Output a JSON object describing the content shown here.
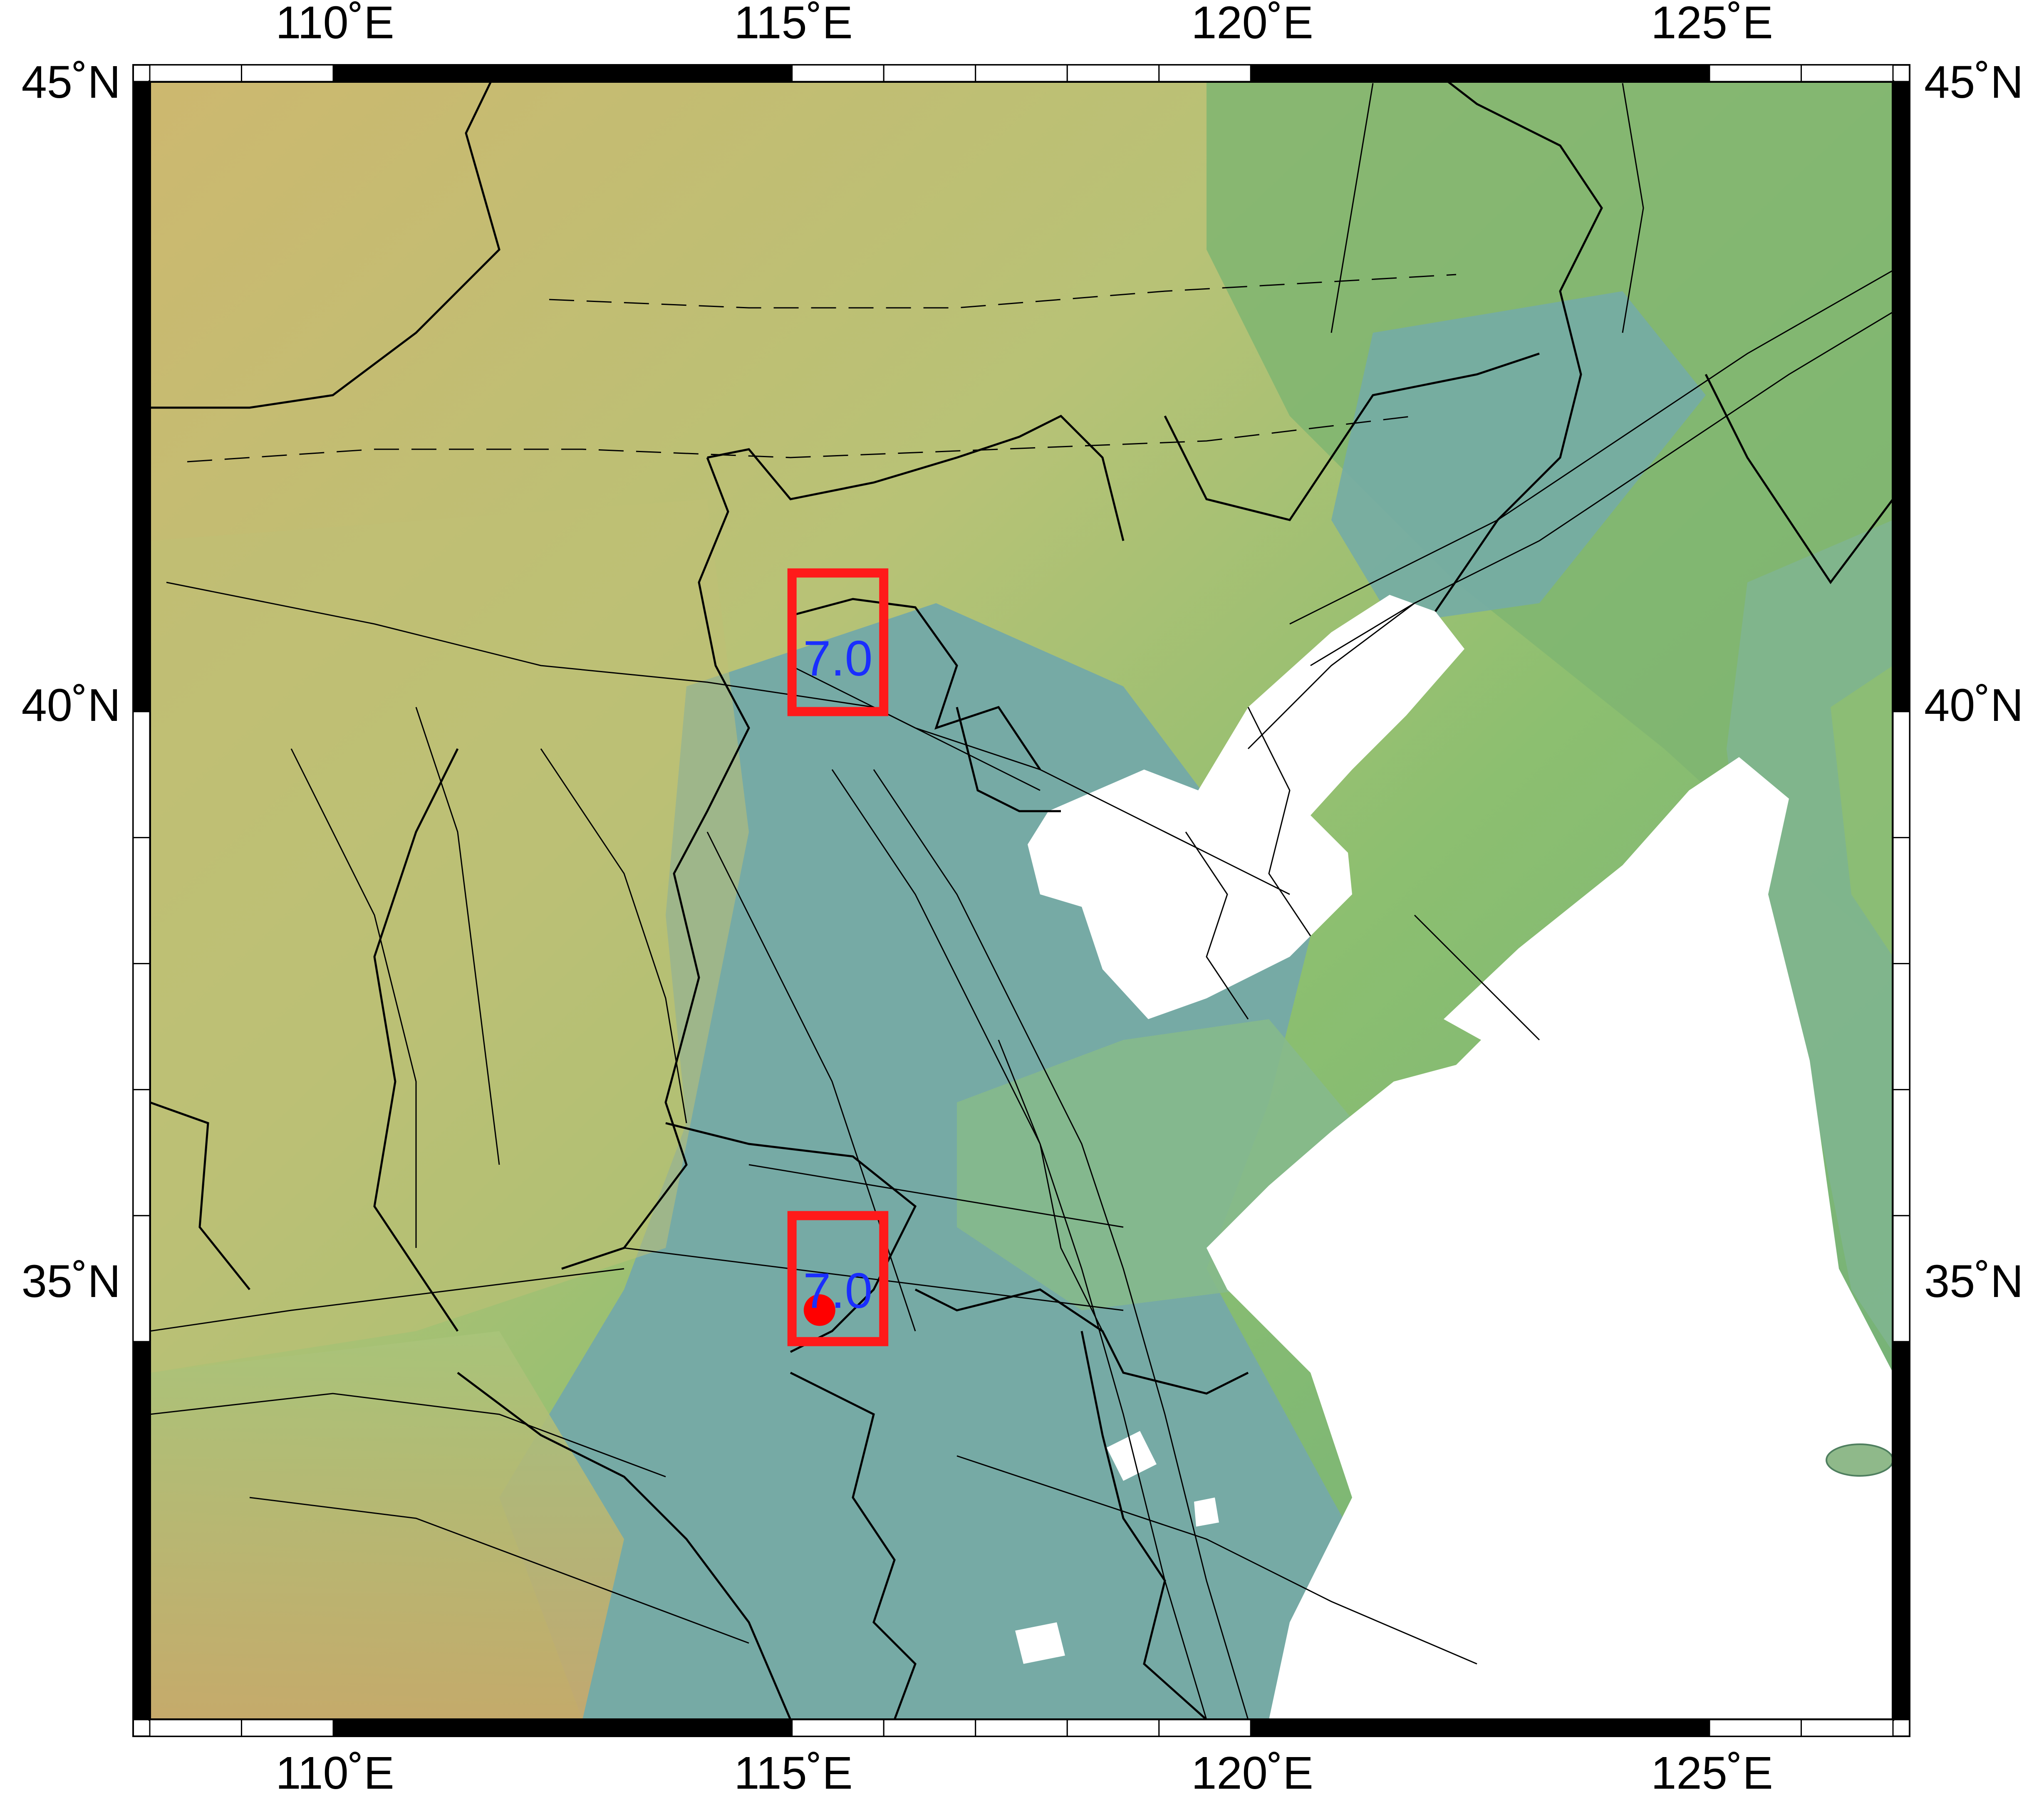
{
  "map": {
    "lon_range": [
      108,
      127
    ],
    "lat_range": [
      32,
      45
    ],
    "frame": "plain-fancy-black-white",
    "colors": {
      "land_high": "#c9b56a",
      "land_mid": "#9cc46e",
      "land_low": "#6aa89a",
      "plain": "#7aaba7",
      "sea": "#ffffff",
      "border": "#000000",
      "fault": "#000000",
      "box": "#ff1a1a",
      "label": "#1a2eff",
      "epicenter": "#ff0000"
    },
    "top_labels": [
      "110˚E",
      "115˚E",
      "120˚E",
      "125˚E"
    ],
    "bottom_labels": [
      "110˚E",
      "115˚E",
      "120˚E",
      "125˚E"
    ],
    "left_labels": [
      "45˚N",
      "40˚N",
      "35˚N"
    ],
    "right_labels": [
      "45˚N",
      "40˚N",
      "35˚N"
    ],
    "lon_ticks": [
      110,
      115,
      120,
      125
    ],
    "lat_ticks": [
      45,
      40,
      35
    ],
    "events": [
      {
        "mag_label": "7.0",
        "box_lon": [
          115.0,
          116.0
        ],
        "box_lat": [
          40.0,
          41.1
        ],
        "has_dot": false
      },
      {
        "mag_label": "7.0",
        "box_lon": [
          115.0,
          116.0
        ],
        "box_lat": [
          35.0,
          36.0
        ],
        "has_dot": true,
        "dot_lon": 115.3,
        "dot_lat": 35.25
      }
    ]
  }
}
